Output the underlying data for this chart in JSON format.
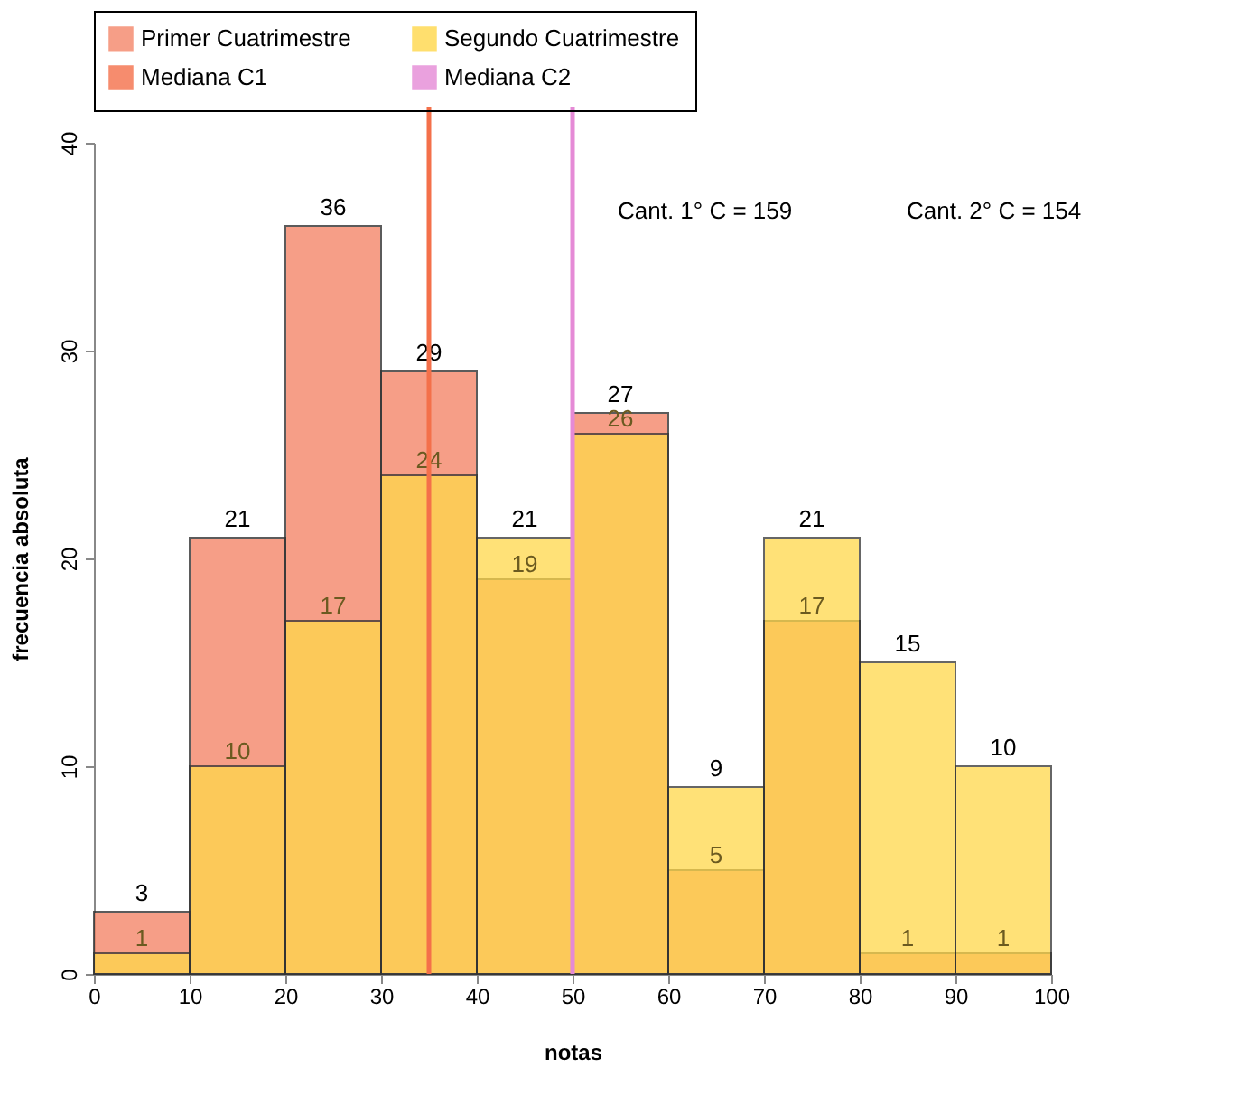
{
  "chart_data": {
    "type": "histogram",
    "xlabel": "notas",
    "ylabel": "frecuencia absoluta",
    "bins": [
      0,
      10,
      20,
      30,
      40,
      50,
      60,
      70,
      80,
      90,
      100
    ],
    "series": [
      {
        "name": "Primer Cuatrimestre",
        "color": "#f4876a",
        "values": [
          3,
          21,
          36,
          29,
          19,
          27,
          5,
          17,
          1,
          1
        ]
      },
      {
        "name": "Segundo Cuatrimestre",
        "color": "#ffd84a",
        "values": [
          1,
          10,
          17,
          24,
          21,
          26,
          9,
          21,
          15,
          10
        ]
      }
    ],
    "xlim": [
      0,
      100
    ],
    "xticks": [
      0,
      10,
      20,
      30,
      40,
      50,
      60,
      70,
      80,
      90,
      100
    ],
    "ylim": [
      0,
      40
    ],
    "yticks": [
      0,
      10,
      20,
      30,
      40
    ],
    "ref_lines": [
      {
        "axis": "x",
        "value": 35,
        "label": "Mediana C1",
        "color": "#f4704a"
      },
      {
        "axis": "x",
        "value": 50,
        "label": "Mediana C2",
        "color": "#e58ad6"
      }
    ],
    "annotations": [
      "Cant. 1° C = 159",
      "Cant. 2° C = 154"
    ],
    "data_labels": true,
    "grid": false,
    "legend": "top"
  }
}
